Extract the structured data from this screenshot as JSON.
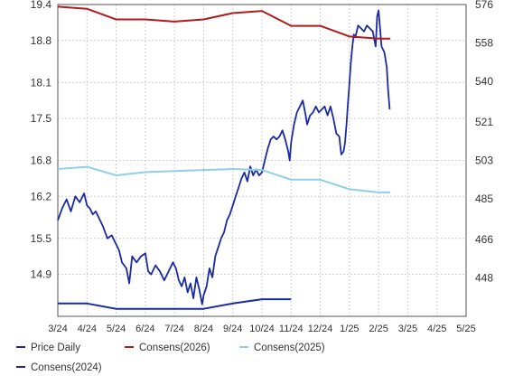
{
  "chart_data": {
    "type": "line",
    "x_labels": [
      "3/24",
      "4/24",
      "5/24",
      "6/24",
      "7/24",
      "8/24",
      "9/24",
      "10/24",
      "11/24",
      "12/24",
      "1/25",
      "2/25",
      "3/25",
      "4/25",
      "5/25"
    ],
    "y_left": {
      "ticks": [
        "19.4",
        "18.8",
        "18.1",
        "17.5",
        "16.8",
        "16.2",
        "15.5",
        "14.9"
      ],
      "range": [
        14.2,
        19.4
      ]
    },
    "y_right": {
      "ticks": [
        "576",
        "558",
        "540",
        "521",
        "503",
        "485",
        "466",
        "448"
      ],
      "range": [
        430,
        576
      ]
    },
    "grid": true,
    "legend_position": "bottom",
    "series": [
      {
        "name": "Price Daily",
        "axis": "left",
        "color": "#1a2aa6",
        "points": [
          [
            0.0,
            15.8
          ],
          [
            0.15,
            16.0
          ],
          [
            0.3,
            16.15
          ],
          [
            0.45,
            15.95
          ],
          [
            0.6,
            16.2
          ],
          [
            0.75,
            16.1
          ],
          [
            0.9,
            16.25
          ],
          [
            1.0,
            16.05
          ],
          [
            1.1,
            16.0
          ],
          [
            1.2,
            15.9
          ],
          [
            1.3,
            15.95
          ],
          [
            1.4,
            15.85
          ],
          [
            1.55,
            15.7
          ],
          [
            1.7,
            15.5
          ],
          [
            1.85,
            15.55
          ],
          [
            2.0,
            15.4
          ],
          [
            2.1,
            15.3
          ],
          [
            2.2,
            15.1
          ],
          [
            2.35,
            15.0
          ],
          [
            2.45,
            14.75
          ],
          [
            2.55,
            15.2
          ],
          [
            2.7,
            15.1
          ],
          [
            2.85,
            15.2
          ],
          [
            3.0,
            15.25
          ],
          [
            3.1,
            14.95
          ],
          [
            3.2,
            14.9
          ],
          [
            3.35,
            15.05
          ],
          [
            3.5,
            14.95
          ],
          [
            3.65,
            14.8
          ],
          [
            3.8,
            14.95
          ],
          [
            3.95,
            15.1
          ],
          [
            4.05,
            15.0
          ],
          [
            4.15,
            14.8
          ],
          [
            4.25,
            14.7
          ],
          [
            4.35,
            14.85
          ],
          [
            4.45,
            14.6
          ],
          [
            4.55,
            14.75
          ],
          [
            4.65,
            14.5
          ],
          [
            4.75,
            14.85
          ],
          [
            4.85,
            14.65
          ],
          [
            4.95,
            14.4
          ],
          [
            5.0,
            14.55
          ],
          [
            5.1,
            14.7
          ],
          [
            5.2,
            15.0
          ],
          [
            5.3,
            14.85
          ],
          [
            5.4,
            15.2
          ],
          [
            5.5,
            15.35
          ],
          [
            5.6,
            15.5
          ],
          [
            5.7,
            15.6
          ],
          [
            5.8,
            15.8
          ],
          [
            5.9,
            15.9
          ],
          [
            6.0,
            16.05
          ],
          [
            6.1,
            16.2
          ],
          [
            6.2,
            16.35
          ],
          [
            6.3,
            16.5
          ],
          [
            6.4,
            16.6
          ],
          [
            6.5,
            16.45
          ],
          [
            6.6,
            16.7
          ],
          [
            6.7,
            16.55
          ],
          [
            6.8,
            16.65
          ],
          [
            6.9,
            16.55
          ],
          [
            7.0,
            16.6
          ],
          [
            7.1,
            16.8
          ],
          [
            7.2,
            17.0
          ],
          [
            7.3,
            17.15
          ],
          [
            7.4,
            17.2
          ],
          [
            7.5,
            17.15
          ],
          [
            7.6,
            17.2
          ],
          [
            7.7,
            17.3
          ],
          [
            7.8,
            17.15
          ],
          [
            7.9,
            16.95
          ],
          [
            7.95,
            16.8
          ],
          [
            8.0,
            17.1
          ],
          [
            8.1,
            17.4
          ],
          [
            8.2,
            17.6
          ],
          [
            8.3,
            17.7
          ],
          [
            8.4,
            17.8
          ],
          [
            8.5,
            17.55
          ],
          [
            8.55,
            17.4
          ],
          [
            8.65,
            17.55
          ],
          [
            8.75,
            17.6
          ],
          [
            8.85,
            17.7
          ],
          [
            8.95,
            17.6
          ],
          [
            9.05,
            17.65
          ],
          [
            9.15,
            17.7
          ],
          [
            9.25,
            17.55
          ],
          [
            9.35,
            17.7
          ],
          [
            9.45,
            17.5
          ],
          [
            9.55,
            17.25
          ],
          [
            9.65,
            17.2
          ],
          [
            9.72,
            16.9
          ],
          [
            9.8,
            16.95
          ],
          [
            9.85,
            17.1
          ],
          [
            9.9,
            17.4
          ],
          [
            9.95,
            17.75
          ],
          [
            10.0,
            18.1
          ],
          [
            10.05,
            18.45
          ],
          [
            10.1,
            18.7
          ],
          [
            10.15,
            18.9
          ],
          [
            10.2,
            18.85
          ],
          [
            10.3,
            19.05
          ],
          [
            10.4,
            19.0
          ],
          [
            10.5,
            18.95
          ],
          [
            10.6,
            19.05
          ],
          [
            10.7,
            19.0
          ],
          [
            10.8,
            18.95
          ],
          [
            10.9,
            18.7
          ],
          [
            10.95,
            19.2
          ],
          [
            11.0,
            19.3
          ],
          [
            11.05,
            19.0
          ],
          [
            11.1,
            18.7
          ],
          [
            11.2,
            18.6
          ],
          [
            11.28,
            18.35
          ],
          [
            11.33,
            17.95
          ],
          [
            11.38,
            17.65
          ]
        ]
      },
      {
        "name": "Consens(2026)",
        "axis": "right",
        "color": "#b01c1c",
        "points": [
          [
            0,
            575
          ],
          [
            1,
            574
          ],
          [
            2,
            569
          ],
          [
            3,
            569
          ],
          [
            4,
            568
          ],
          [
            5,
            569
          ],
          [
            6,
            572
          ],
          [
            7,
            573
          ],
          [
            8,
            566
          ],
          [
            9,
            566
          ],
          [
            10,
            561
          ],
          [
            11,
            560
          ],
          [
            11.4,
            560
          ]
        ]
      },
      {
        "name": "Consens(2025)",
        "axis": "right",
        "color": "#8fcfe8",
        "points": [
          [
            0,
            499
          ],
          [
            1,
            500
          ],
          [
            2,
            496
          ],
          [
            3,
            497.5
          ],
          [
            4,
            498
          ],
          [
            5,
            498.5
          ],
          [
            6,
            499
          ],
          [
            7,
            498.5
          ],
          [
            8,
            494
          ],
          [
            9,
            494
          ],
          [
            10,
            489.5
          ],
          [
            11,
            488
          ],
          [
            11.4,
            488
          ]
        ]
      },
      {
        "name": "Consens(2024)",
        "axis": "right",
        "color": "#1a2aa6",
        "points": [
          [
            0,
            436
          ],
          [
            1,
            436
          ],
          [
            2,
            433.5
          ],
          [
            3,
            433.5
          ],
          [
            4,
            433.5
          ],
          [
            5,
            433.5
          ],
          [
            6,
            436
          ],
          [
            7,
            438
          ],
          [
            8,
            438
          ]
        ]
      }
    ]
  }
}
